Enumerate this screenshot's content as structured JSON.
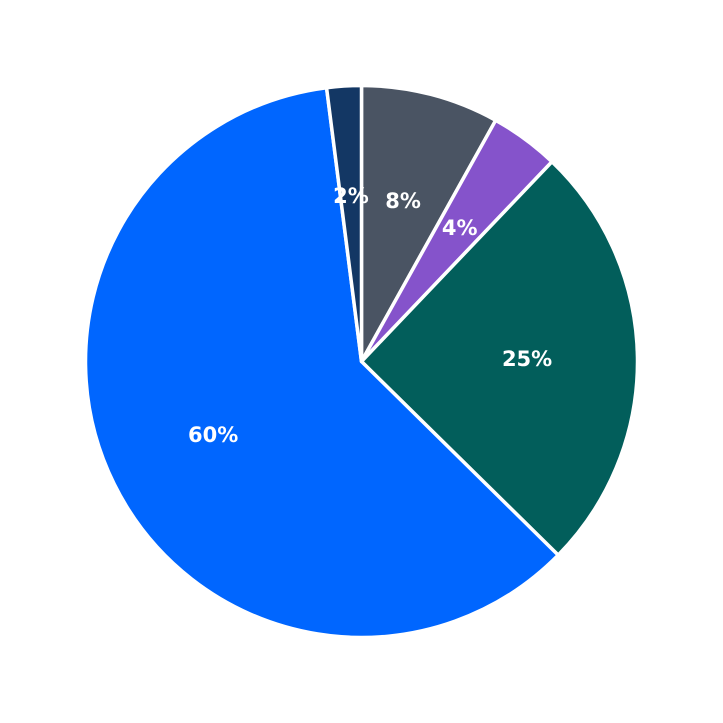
{
  "chart_data": {
    "type": "pie",
    "title": "",
    "start_angle_deg": 0,
    "direction": "clockwise",
    "slices": [
      {
        "value": 8,
        "label": "8%",
        "color": "#4a5463"
      },
      {
        "value": 4,
        "label": "4%",
        "color": "#8553cb"
      },
      {
        "value": 25,
        "label": "25%",
        "color": "#025e5b"
      },
      {
        "value": 60,
        "label": "60%",
        "color": "#0066ff"
      },
      {
        "value": 2,
        "label": "2%",
        "color": "#133764"
      }
    ]
  }
}
